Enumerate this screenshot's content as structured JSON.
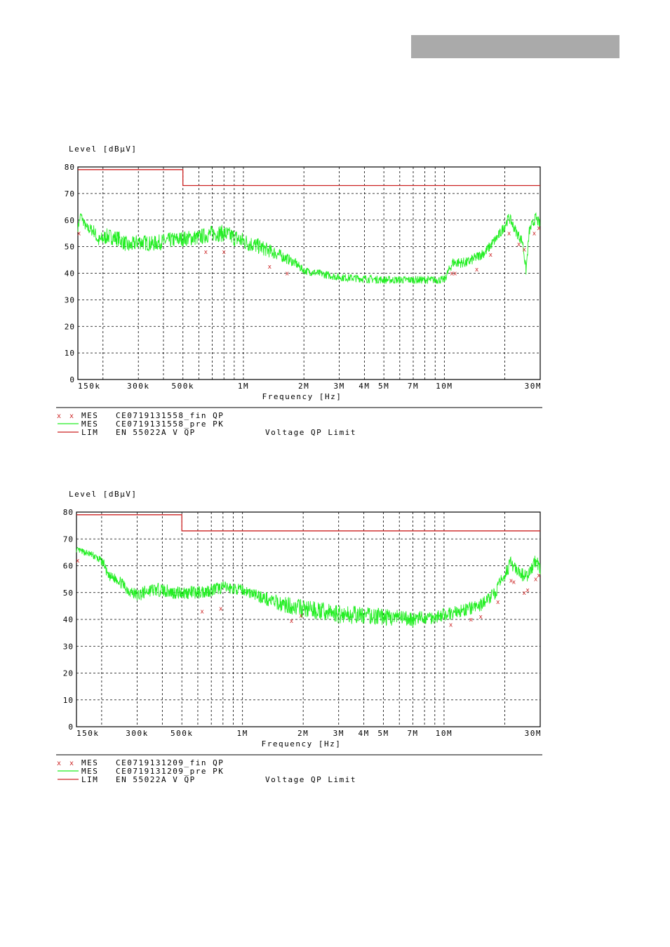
{
  "chart_data": [
    {
      "type": "line",
      "ylabel": "Level [dBµV]",
      "xlabel": "Frequency [Hz]",
      "x_scale": "log",
      "xlim": [
        150000,
        30000000
      ],
      "ylim": [
        0,
        80
      ],
      "grid": true,
      "xticks": [
        {
          "value": 150000,
          "label": "150k"
        },
        {
          "value": 300000,
          "label": "300k"
        },
        {
          "value": 500000,
          "label": "500k"
        },
        {
          "value": 1000000,
          "label": "1M"
        },
        {
          "value": 2000000,
          "label": "2M"
        },
        {
          "value": 3000000,
          "label": "3M"
        },
        {
          "value": 4000000,
          "label": "4M"
        },
        {
          "value": 5000000,
          "label": "5M"
        },
        {
          "value": 7000000,
          "label": "7M"
        },
        {
          "value": 10000000,
          "label": "10M"
        },
        {
          "value": 30000000,
          "label": "30M"
        }
      ],
      "yticks": [
        0,
        10,
        20,
        30,
        40,
        50,
        60,
        70,
        80
      ],
      "limit": {
        "color": "#cc2222",
        "points": [
          [
            150000,
            79
          ],
          [
            500000,
            79
          ],
          [
            500000,
            73
          ],
          [
            30000000,
            73
          ]
        ]
      },
      "pre_scan": {
        "color": "#22ee22",
        "points": [
          [
            150000,
            57
          ],
          [
            155000,
            62
          ],
          [
            165000,
            57
          ],
          [
            180000,
            56
          ],
          [
            190000,
            52
          ],
          [
            210000,
            54
          ],
          [
            240000,
            53
          ],
          [
            270000,
            50
          ],
          [
            300000,
            52
          ],
          [
            350000,
            51
          ],
          [
            400000,
            52
          ],
          [
            500000,
            53
          ],
          [
            600000,
            53.5
          ],
          [
            700000,
            55
          ],
          [
            800000,
            55
          ],
          [
            1000000,
            52
          ],
          [
            1200000,
            50
          ],
          [
            1500000,
            47
          ],
          [
            1800000,
            44
          ],
          [
            2000000,
            41
          ],
          [
            3000000,
            38.5
          ],
          [
            5000000,
            37.5
          ],
          [
            8000000,
            37.5
          ],
          [
            10000000,
            37.5
          ],
          [
            11000000,
            44
          ],
          [
            13000000,
            44
          ],
          [
            16000000,
            48
          ],
          [
            19000000,
            55
          ],
          [
            21000000,
            61
          ],
          [
            23000000,
            55
          ],
          [
            24500000,
            52
          ],
          [
            25500000,
            41
          ],
          [
            26500000,
            56
          ],
          [
            28500000,
            61
          ],
          [
            30000000,
            58
          ]
        ],
        "noise": [
          [
            150000,
            1.5
          ],
          [
            200000,
            3
          ],
          [
            600000,
            3
          ],
          [
            1000000,
            3.5
          ],
          [
            2000000,
            1.5
          ],
          [
            10000000,
            1.5
          ],
          [
            11000000,
            2
          ],
          [
            20000000,
            2
          ],
          [
            30000000,
            2
          ]
        ]
      },
      "final_qp": {
        "color": "#cc2222",
        "points": [
          [
            152000,
            55
          ],
          [
            650000,
            48
          ],
          [
            800000,
            48
          ],
          [
            1350000,
            42.5
          ],
          [
            1650000,
            40
          ],
          [
            10900000,
            40
          ],
          [
            11300000,
            40
          ],
          [
            14500000,
            41.5
          ],
          [
            17000000,
            47
          ],
          [
            21000000,
            55
          ],
          [
            23500000,
            51
          ],
          [
            25000000,
            49
          ],
          [
            28000000,
            55
          ],
          [
            29500000,
            57
          ]
        ]
      },
      "legend": [
        {
          "marker": "x x",
          "type": "MES",
          "name": "CE0719131558_fin QP",
          "note": ""
        },
        {
          "marker": "",
          "type": "MES",
          "name": "CE0719131558_pre PK",
          "note": ""
        },
        {
          "marker": "",
          "type": "LIM",
          "name": "EN 55022A V QP",
          "note": "Voltage QP Limit"
        }
      ]
    },
    {
      "type": "line",
      "ylabel": "Level [dBµV]",
      "xlabel": "Frequency [Hz]",
      "x_scale": "log",
      "xlim": [
        150000,
        30000000
      ],
      "ylim": [
        0,
        80
      ],
      "grid": true,
      "xticks": [
        {
          "value": 150000,
          "label": "150k"
        },
        {
          "value": 300000,
          "label": "300k"
        },
        {
          "value": 500000,
          "label": "500k"
        },
        {
          "value": 1000000,
          "label": "1M"
        },
        {
          "value": 2000000,
          "label": "2M"
        },
        {
          "value": 3000000,
          "label": "3M"
        },
        {
          "value": 4000000,
          "label": "4M"
        },
        {
          "value": 5000000,
          "label": "5M"
        },
        {
          "value": 7000000,
          "label": "7M"
        },
        {
          "value": 10000000,
          "label": "10M"
        },
        {
          "value": 30000000,
          "label": "30M"
        }
      ],
      "yticks": [
        0,
        10,
        20,
        30,
        40,
        50,
        60,
        70,
        80
      ],
      "limit": {
        "color": "#cc2222",
        "points": [
          [
            150000,
            79
          ],
          [
            500000,
            79
          ],
          [
            500000,
            73
          ],
          [
            30000000,
            73
          ]
        ]
      },
      "pre_scan": {
        "color": "#22ee22",
        "points": [
          [
            150000,
            66
          ],
          [
            180000,
            64
          ],
          [
            205000,
            61
          ],
          [
            215000,
            56
          ],
          [
            240000,
            55
          ],
          [
            270000,
            51
          ],
          [
            300000,
            49
          ],
          [
            350000,
            51
          ],
          [
            400000,
            51
          ],
          [
            450000,
            50
          ],
          [
            500000,
            50
          ],
          [
            600000,
            50
          ],
          [
            700000,
            51
          ],
          [
            800000,
            52
          ],
          [
            1000000,
            51
          ],
          [
            1500000,
            46
          ],
          [
            2000000,
            44
          ],
          [
            3000000,
            42
          ],
          [
            5000000,
            41
          ],
          [
            7000000,
            40
          ],
          [
            9000000,
            41
          ],
          [
            12000000,
            43
          ],
          [
            15000000,
            45
          ],
          [
            18000000,
            50
          ],
          [
            20000000,
            57
          ],
          [
            21500000,
            61
          ],
          [
            23500000,
            57
          ],
          [
            26000000,
            56
          ],
          [
            28500000,
            62
          ],
          [
            30000000,
            59
          ]
        ],
        "noise": [
          [
            150000,
            1
          ],
          [
            300000,
            2.5
          ],
          [
            700000,
            2.5
          ],
          [
            1000000,
            2
          ],
          [
            2000000,
            3.5
          ],
          [
            3000000,
            3.5
          ],
          [
            7000000,
            3
          ],
          [
            10000000,
            2.5
          ],
          [
            20000000,
            2.5
          ],
          [
            30000000,
            2.5
          ]
        ]
      },
      "final_qp": {
        "color": "#cc2222",
        "points": [
          [
            152000,
            62
          ],
          [
            630000,
            43
          ],
          [
            780000,
            44
          ],
          [
            1750000,
            39.5
          ],
          [
            1950000,
            41.5
          ],
          [
            10800000,
            38
          ],
          [
            13600000,
            40
          ],
          [
            15200000,
            41
          ],
          [
            18500000,
            46.5
          ],
          [
            21500000,
            54.5
          ],
          [
            22200000,
            54
          ],
          [
            25000000,
            50
          ],
          [
            26000000,
            51
          ],
          [
            28500000,
            55
          ],
          [
            29500000,
            56.5
          ]
        ]
      },
      "legend": [
        {
          "marker": "x x",
          "type": "MES",
          "name": "CE0719131209_fin QP",
          "note": ""
        },
        {
          "marker": "",
          "type": "MES",
          "name": "CE0719131209_pre PK",
          "note": ""
        },
        {
          "marker": "",
          "type": "LIM",
          "name": "EN 55022A V QP",
          "note": "Voltage QP Limit"
        }
      ]
    }
  ]
}
